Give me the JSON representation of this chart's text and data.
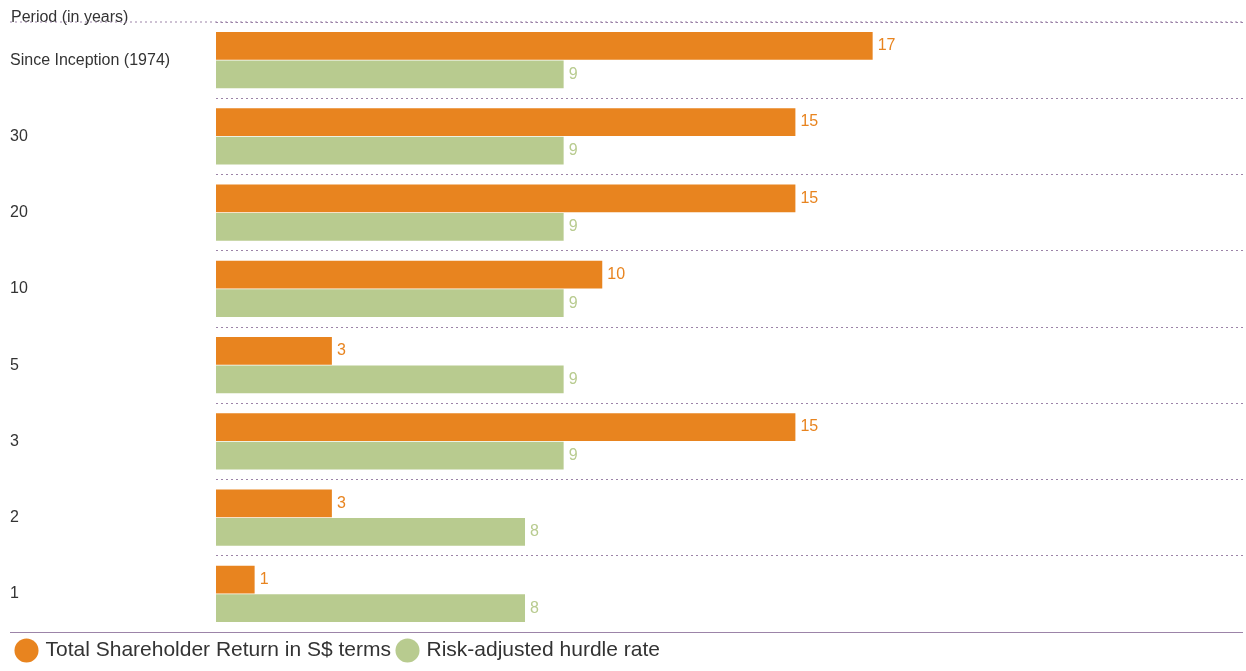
{
  "chart_data": {
    "type": "bar",
    "orientation": "horizontal",
    "data_labels": true,
    "ylabel": "Period (in years)",
    "categories": [
      "Since Inception (1974)",
      "30",
      "20",
      "10",
      "5",
      "3",
      "2",
      "1"
    ],
    "series": [
      {
        "name": "Total Shareholder Return in S$ terms",
        "color": "#e8841f",
        "values": [
          17,
          15,
          15,
          10,
          3,
          15,
          3,
          1
        ]
      },
      {
        "name": "Risk-adjusted hurdle rate",
        "color": "#b8cb8f",
        "values": [
          9,
          9,
          9,
          9,
          9,
          9,
          8,
          8
        ]
      }
    ],
    "grid": "y",
    "legend": "bottom left"
  }
}
